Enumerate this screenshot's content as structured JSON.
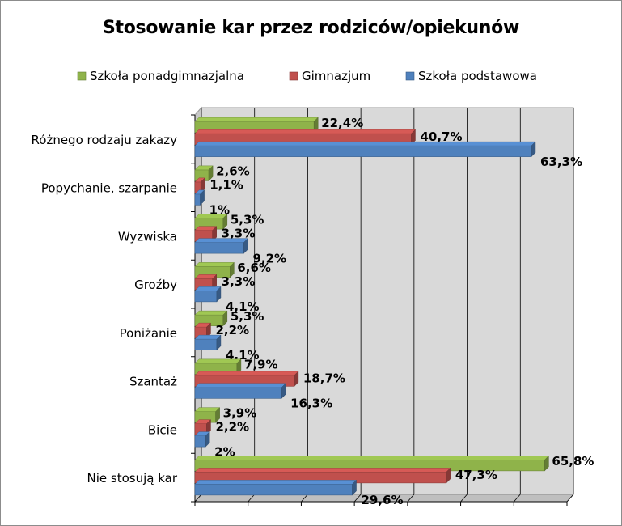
{
  "chart_data": {
    "type": "bar",
    "orientation": "horizontal",
    "title": "Stosowanie kar przez rodziców/opiekunów",
    "categories": [
      "Różnego rodzaju zakazy",
      "Popychanie, szarpanie",
      "Wyzwiska",
      "Groźby",
      "Poniżanie",
      "Szantaż",
      "Bicie",
      "Nie stosują kar"
    ],
    "series": [
      {
        "name": "Szkoła ponadgimnazjalna",
        "color": "#8fb34a",
        "values": [
          22.4,
          2.6,
          5.3,
          6.6,
          5.3,
          7.9,
          3.9,
          65.8
        ],
        "labels": [
          "22,4%",
          "2,6%",
          "5,3%",
          "6,6%",
          "5,3%",
          "7,9%",
          "3,9%",
          "65,8%"
        ]
      },
      {
        "name": "Gimnazjum",
        "color": "#c0504d",
        "values": [
          40.7,
          1.1,
          3.3,
          3.3,
          2.2,
          18.7,
          2.2,
          47.3
        ],
        "labels": [
          "40,7%",
          "1,1%",
          "3,3%",
          "3,3%",
          "2,2%",
          "18,7%",
          "2,2%",
          "47,3%"
        ]
      },
      {
        "name": "Szkoła podstawowa",
        "color": "#4f81bd",
        "values": [
          63.3,
          1,
          9.2,
          4.1,
          4.1,
          16.3,
          2,
          29.6
        ],
        "labels": [
          "63,3%",
          "1%",
          "9,2%",
          "4,1%",
          "4,1%",
          "16,3%",
          "2%",
          "29,6%"
        ]
      }
    ],
    "legend_order": [
      0,
      1,
      2
    ],
    "xlim": [
      0,
      70
    ],
    "grid": true,
    "legend_position": "top"
  }
}
